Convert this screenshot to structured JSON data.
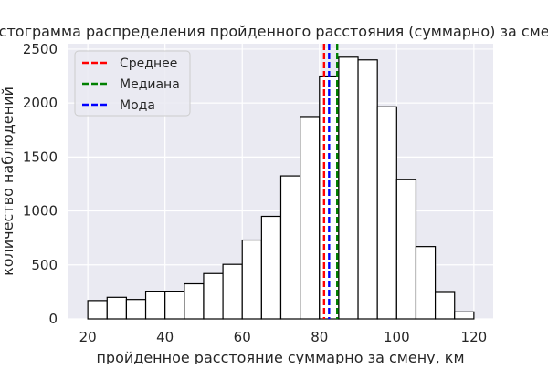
{
  "chart_data": {
    "type": "bar",
    "title": "Гистограмма распределения пройденного расстояния (суммарно) за смену",
    "xlabel": "пройденное расстояние суммарно за смену, км",
    "ylabel": "количество наблюдений",
    "xlim": [
      15,
      125
    ],
    "ylim": [
      0,
      2550
    ],
    "xticks": [
      20,
      40,
      60,
      80,
      100,
      120
    ],
    "yticks": [
      0,
      500,
      1000,
      1500,
      2000,
      2500
    ],
    "bin_edges": [
      20,
      25,
      30,
      35,
      40,
      45,
      50,
      55,
      60,
      65,
      70,
      75,
      80,
      85,
      90,
      95,
      100,
      105,
      110,
      115,
      120
    ],
    "values": [
      170,
      200,
      180,
      250,
      250,
      325,
      420,
      505,
      730,
      950,
      1325,
      1875,
      2250,
      2425,
      2400,
      1965,
      1290,
      670,
      245,
      65
    ],
    "grid": true,
    "background": "#eaeaf2",
    "bar_face_color": "#ffffff",
    "bar_edge_color": "#000000",
    "reference_lines": [
      {
        "label": "Среднее",
        "x": 81.2,
        "color": "#ff0000",
        "style": "dashed"
      },
      {
        "label": "Медиана",
        "x": 84.6,
        "color": "#008000",
        "style": "dashed"
      },
      {
        "label": "Мода",
        "x": 82.5,
        "color": "#0000ff",
        "style": "dashed"
      }
    ],
    "legend_position": "top-left"
  }
}
